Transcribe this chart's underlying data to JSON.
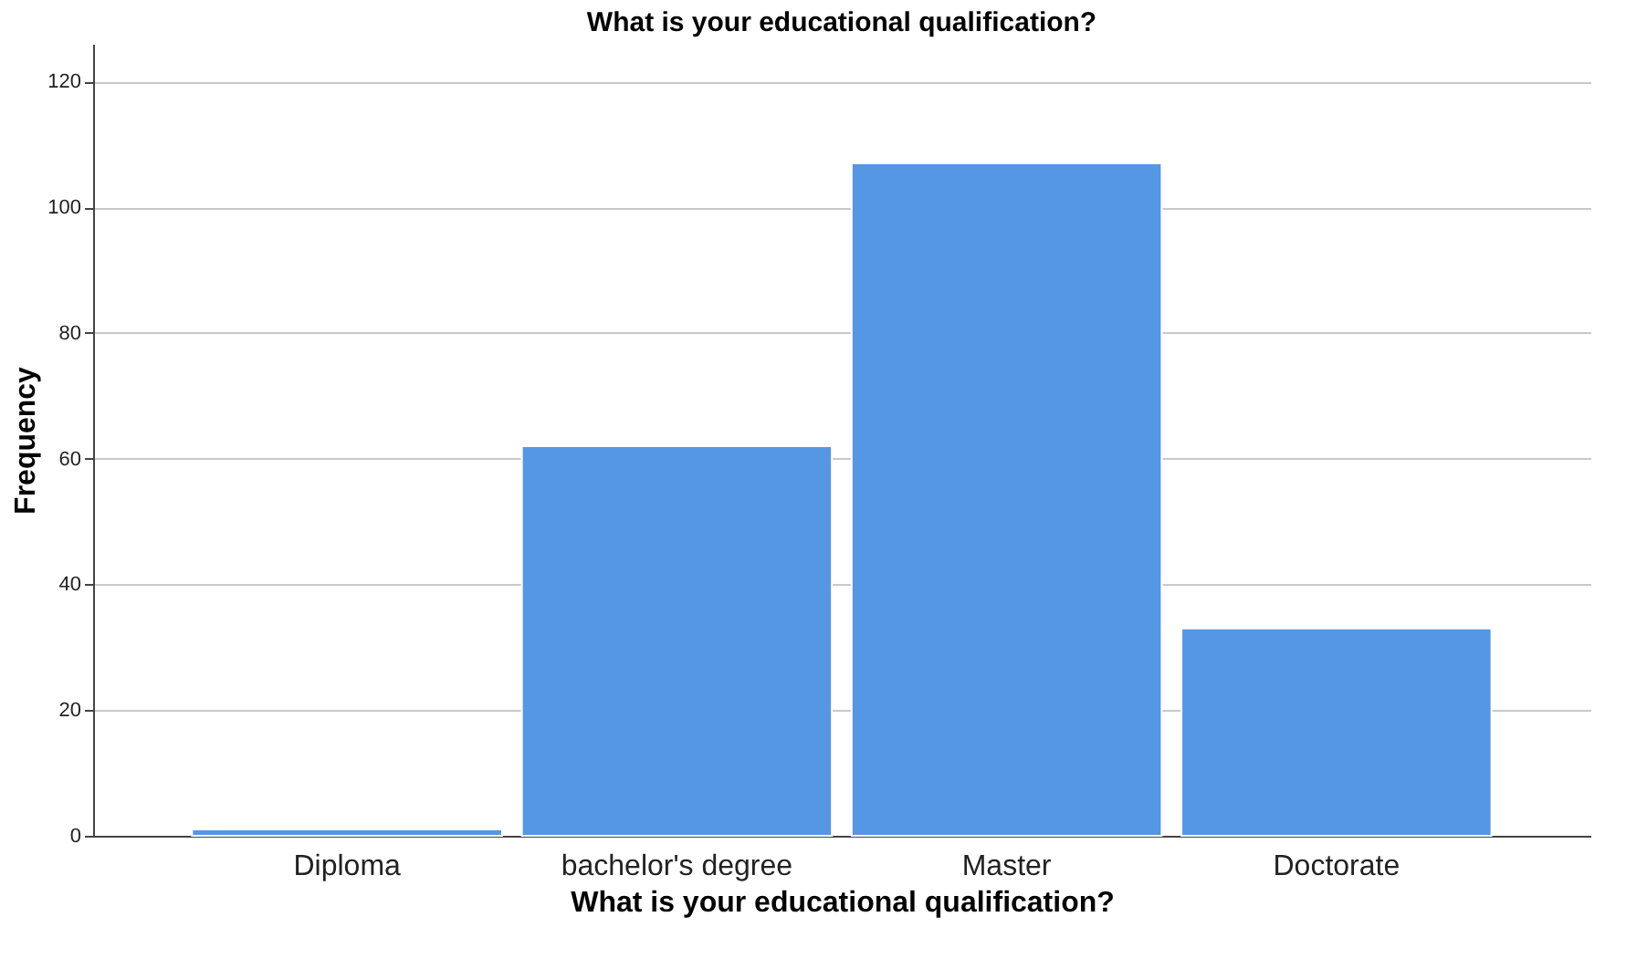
{
  "chart_data": {
    "type": "bar",
    "title": "What is your educational qualification?",
    "xlabel": "What is your educational qualification?",
    "ylabel": "Frequency",
    "categories": [
      "Diploma",
      "bachelor's degree",
      "Master",
      "Doctorate"
    ],
    "values": [
      1,
      62,
      107,
      33
    ],
    "color": "#5596e5",
    "ylim": [
      0,
      126
    ],
    "yticks": [
      0,
      20,
      40,
      60,
      80,
      100,
      120
    ],
    "grid": "y"
  }
}
